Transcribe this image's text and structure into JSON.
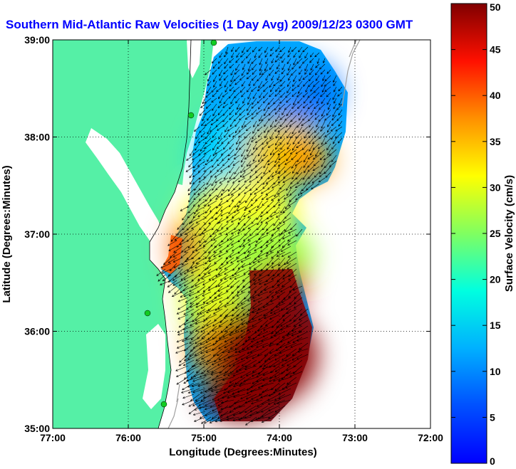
{
  "chart_data": {
    "type": "heatmap",
    "title": "Southern Mid-Atlantic Raw Velocities (1 Day Avg) 2009/12/23 0300 GMT",
    "xlabel": "Longitude (Degrees:Minutes)",
    "ylabel": "Latitude (Degrees:Minutes)",
    "xlim": [
      -77,
      -72
    ],
    "ylim": [
      35,
      39
    ],
    "x_ticks": [
      -77,
      -76,
      -75,
      -74,
      -73,
      -72
    ],
    "x_tick_labels": [
      "77:00",
      "76:00",
      "75:00",
      "74:00",
      "73:00",
      "72:00"
    ],
    "y_ticks": [
      35,
      36,
      37,
      38,
      39
    ],
    "y_tick_labels": [
      "35:00",
      "36:00",
      "37:00",
      "38:00",
      "39:00"
    ],
    "grid": true,
    "colorbar": {
      "label": "Surface Velocity (cm/s)",
      "range": [
        0,
        50
      ],
      "ticks": [
        0,
        5,
        10,
        15,
        20,
        25,
        30,
        35,
        40,
        45,
        50
      ],
      "tick_labels": [
        "0",
        "5",
        "10",
        "15",
        "20",
        "25",
        "30",
        "35",
        "40",
        "45",
        "50"
      ]
    },
    "velocity_samples": [
      {
        "lon": -74.3,
        "lat": 38.6,
        "speed": 8
      },
      {
        "lon": -73.6,
        "lat": 38.5,
        "speed": 6
      },
      {
        "lon": -74.6,
        "lat": 38.0,
        "speed": 9
      },
      {
        "lon": -73.8,
        "lat": 37.8,
        "speed": 30
      },
      {
        "lon": -74.6,
        "lat": 37.2,
        "speed": 23
      },
      {
        "lon": -74.2,
        "lat": 36.7,
        "speed": 20
      },
      {
        "lon": -73.9,
        "lat": 36.2,
        "speed": 50
      },
      {
        "lon": -74.0,
        "lat": 35.6,
        "speed": 50
      },
      {
        "lon": -74.8,
        "lat": 36.0,
        "speed": 30
      },
      {
        "lon": -75.2,
        "lat": 36.8,
        "speed": 18
      }
    ]
  },
  "colors": {
    "land": "#55f0a6",
    "title": "#0000ff",
    "coast_outline": "#a0a0a0",
    "vectors": "#000000"
  }
}
